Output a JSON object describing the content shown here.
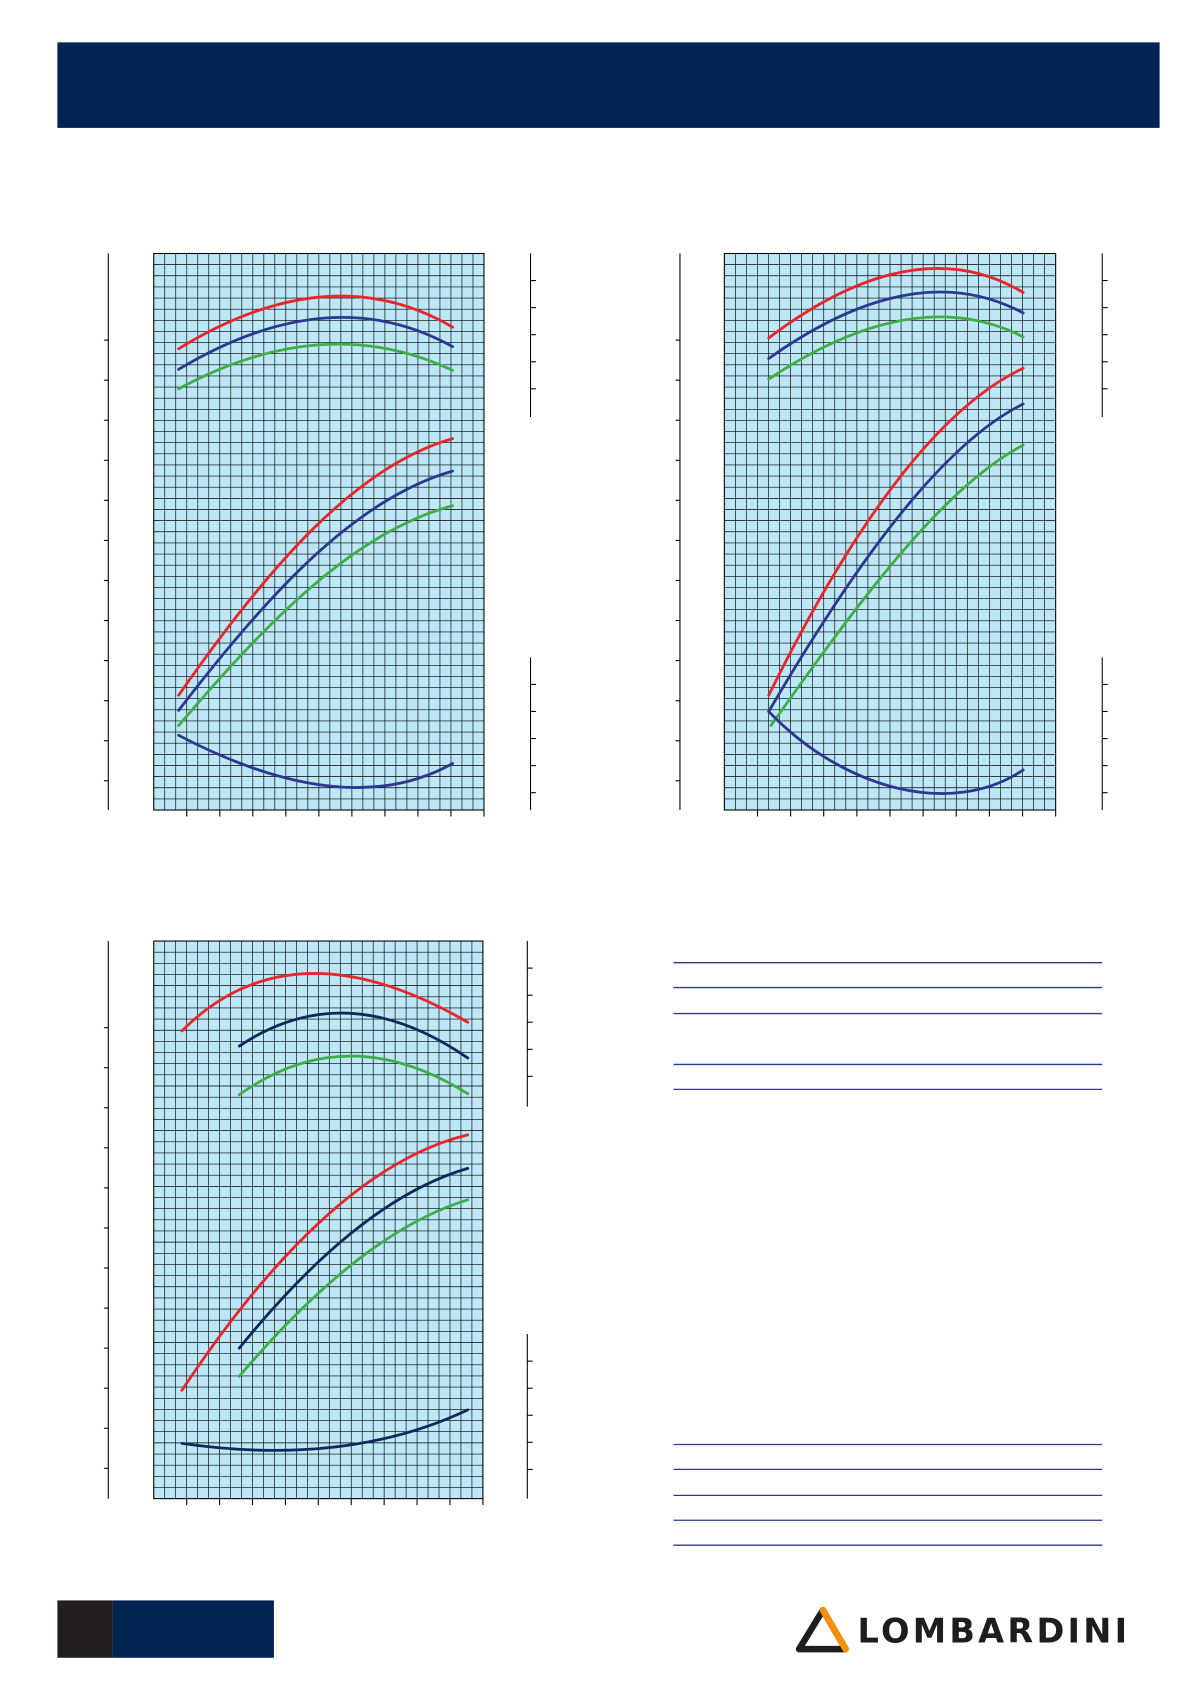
{
  "logo": "LOMBARDINI"
}
